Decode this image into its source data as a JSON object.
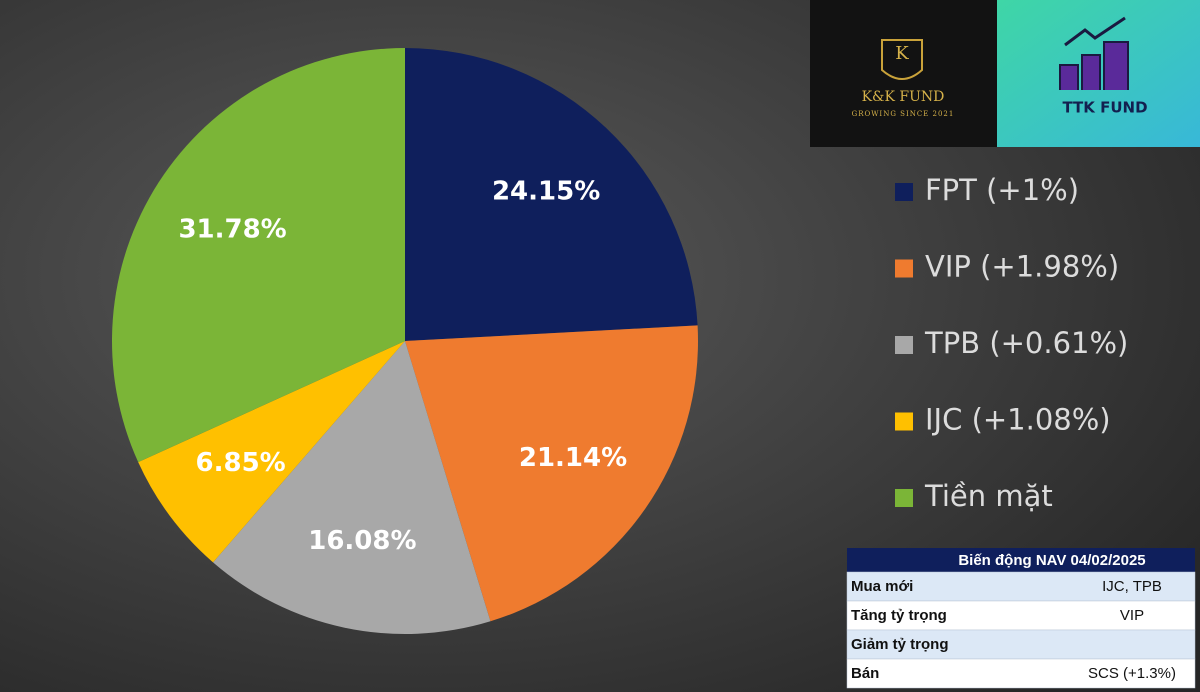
{
  "chart_data": {
    "type": "pie",
    "categories": [
      "FPT (+1%)",
      "VIP (+1.98%)",
      "TPB (+0.61%)",
      "IJC (+1.08%)",
      "Tiền mặt"
    ],
    "values": [
      24.15,
      21.14,
      16.08,
      6.85,
      31.78
    ],
    "value_labels": [
      "24.15%",
      "21.14%",
      "16.08%",
      "6.85%",
      "31.78%"
    ],
    "colors": [
      "#0f1f5c",
      "#ef7b2f",
      "#a8a8a8",
      "#ffc000",
      "#7bb537"
    ],
    "legend": "right"
  },
  "logos": [
    {
      "monogram": "K",
      "name": "K&K FUND",
      "tagline": "GROWING SINCE 2021"
    },
    {
      "name": "TTK FUND"
    }
  ],
  "table": {
    "title": "Biến động NAV 04/02/2025",
    "rows": [
      [
        "Mua mới",
        "IJC, TPB"
      ],
      [
        "Tăng tỷ trọng",
        "VIP"
      ],
      [
        "Giảm tỷ trọng"
      ],
      [
        "Bán",
        "SCS (+1.3%)"
      ]
    ]
  }
}
